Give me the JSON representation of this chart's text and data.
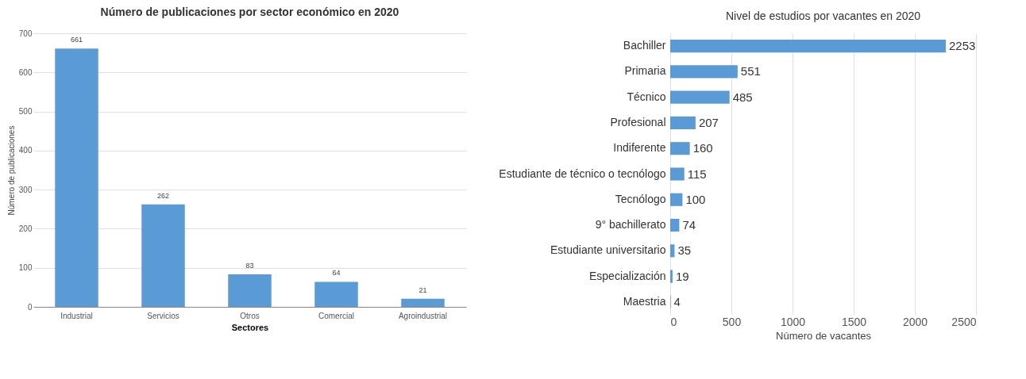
{
  "chart_data": [
    {
      "type": "bar",
      "title": "Número de publicaciones por sector económico en 2020",
      "xlabel": "Sectores",
      "ylabel": "Número de publicaciones",
      "categories": [
        "Industrial",
        "Servicios",
        "Otros",
        "Comercial",
        "Agroindustrial"
      ],
      "values": [
        661,
        262,
        83,
        64,
        21
      ],
      "color": "#5b9bd5",
      "ylim": [
        0,
        700
      ],
      "yticks": [
        0,
        100,
        200,
        300,
        400,
        500,
        600,
        700
      ],
      "grid": "y",
      "data_labels": true
    },
    {
      "type": "bar",
      "orientation": "horizontal",
      "title": "Nivel de estudios por vacantes en 2020",
      "xlabel": "Número de vacantes",
      "categories": [
        "Bachiller",
        "Primaria",
        "Técnico",
        "Profesional",
        "Indiferente",
        "Estudiante de técnico o tecnólogo",
        "Tecnólogo",
        "9° bachillerato",
        "Estudiante universitario",
        "Especialización",
        "Maestria"
      ],
      "values": [
        2253,
        551,
        485,
        207,
        160,
        115,
        100,
        74,
        35,
        19,
        4
      ],
      "color": "#5b9bd5",
      "xlim": [
        0,
        2500
      ],
      "xticks": [
        0,
        500,
        1000,
        1500,
        2000,
        2500
      ],
      "grid": "x",
      "data_labels": true
    }
  ]
}
